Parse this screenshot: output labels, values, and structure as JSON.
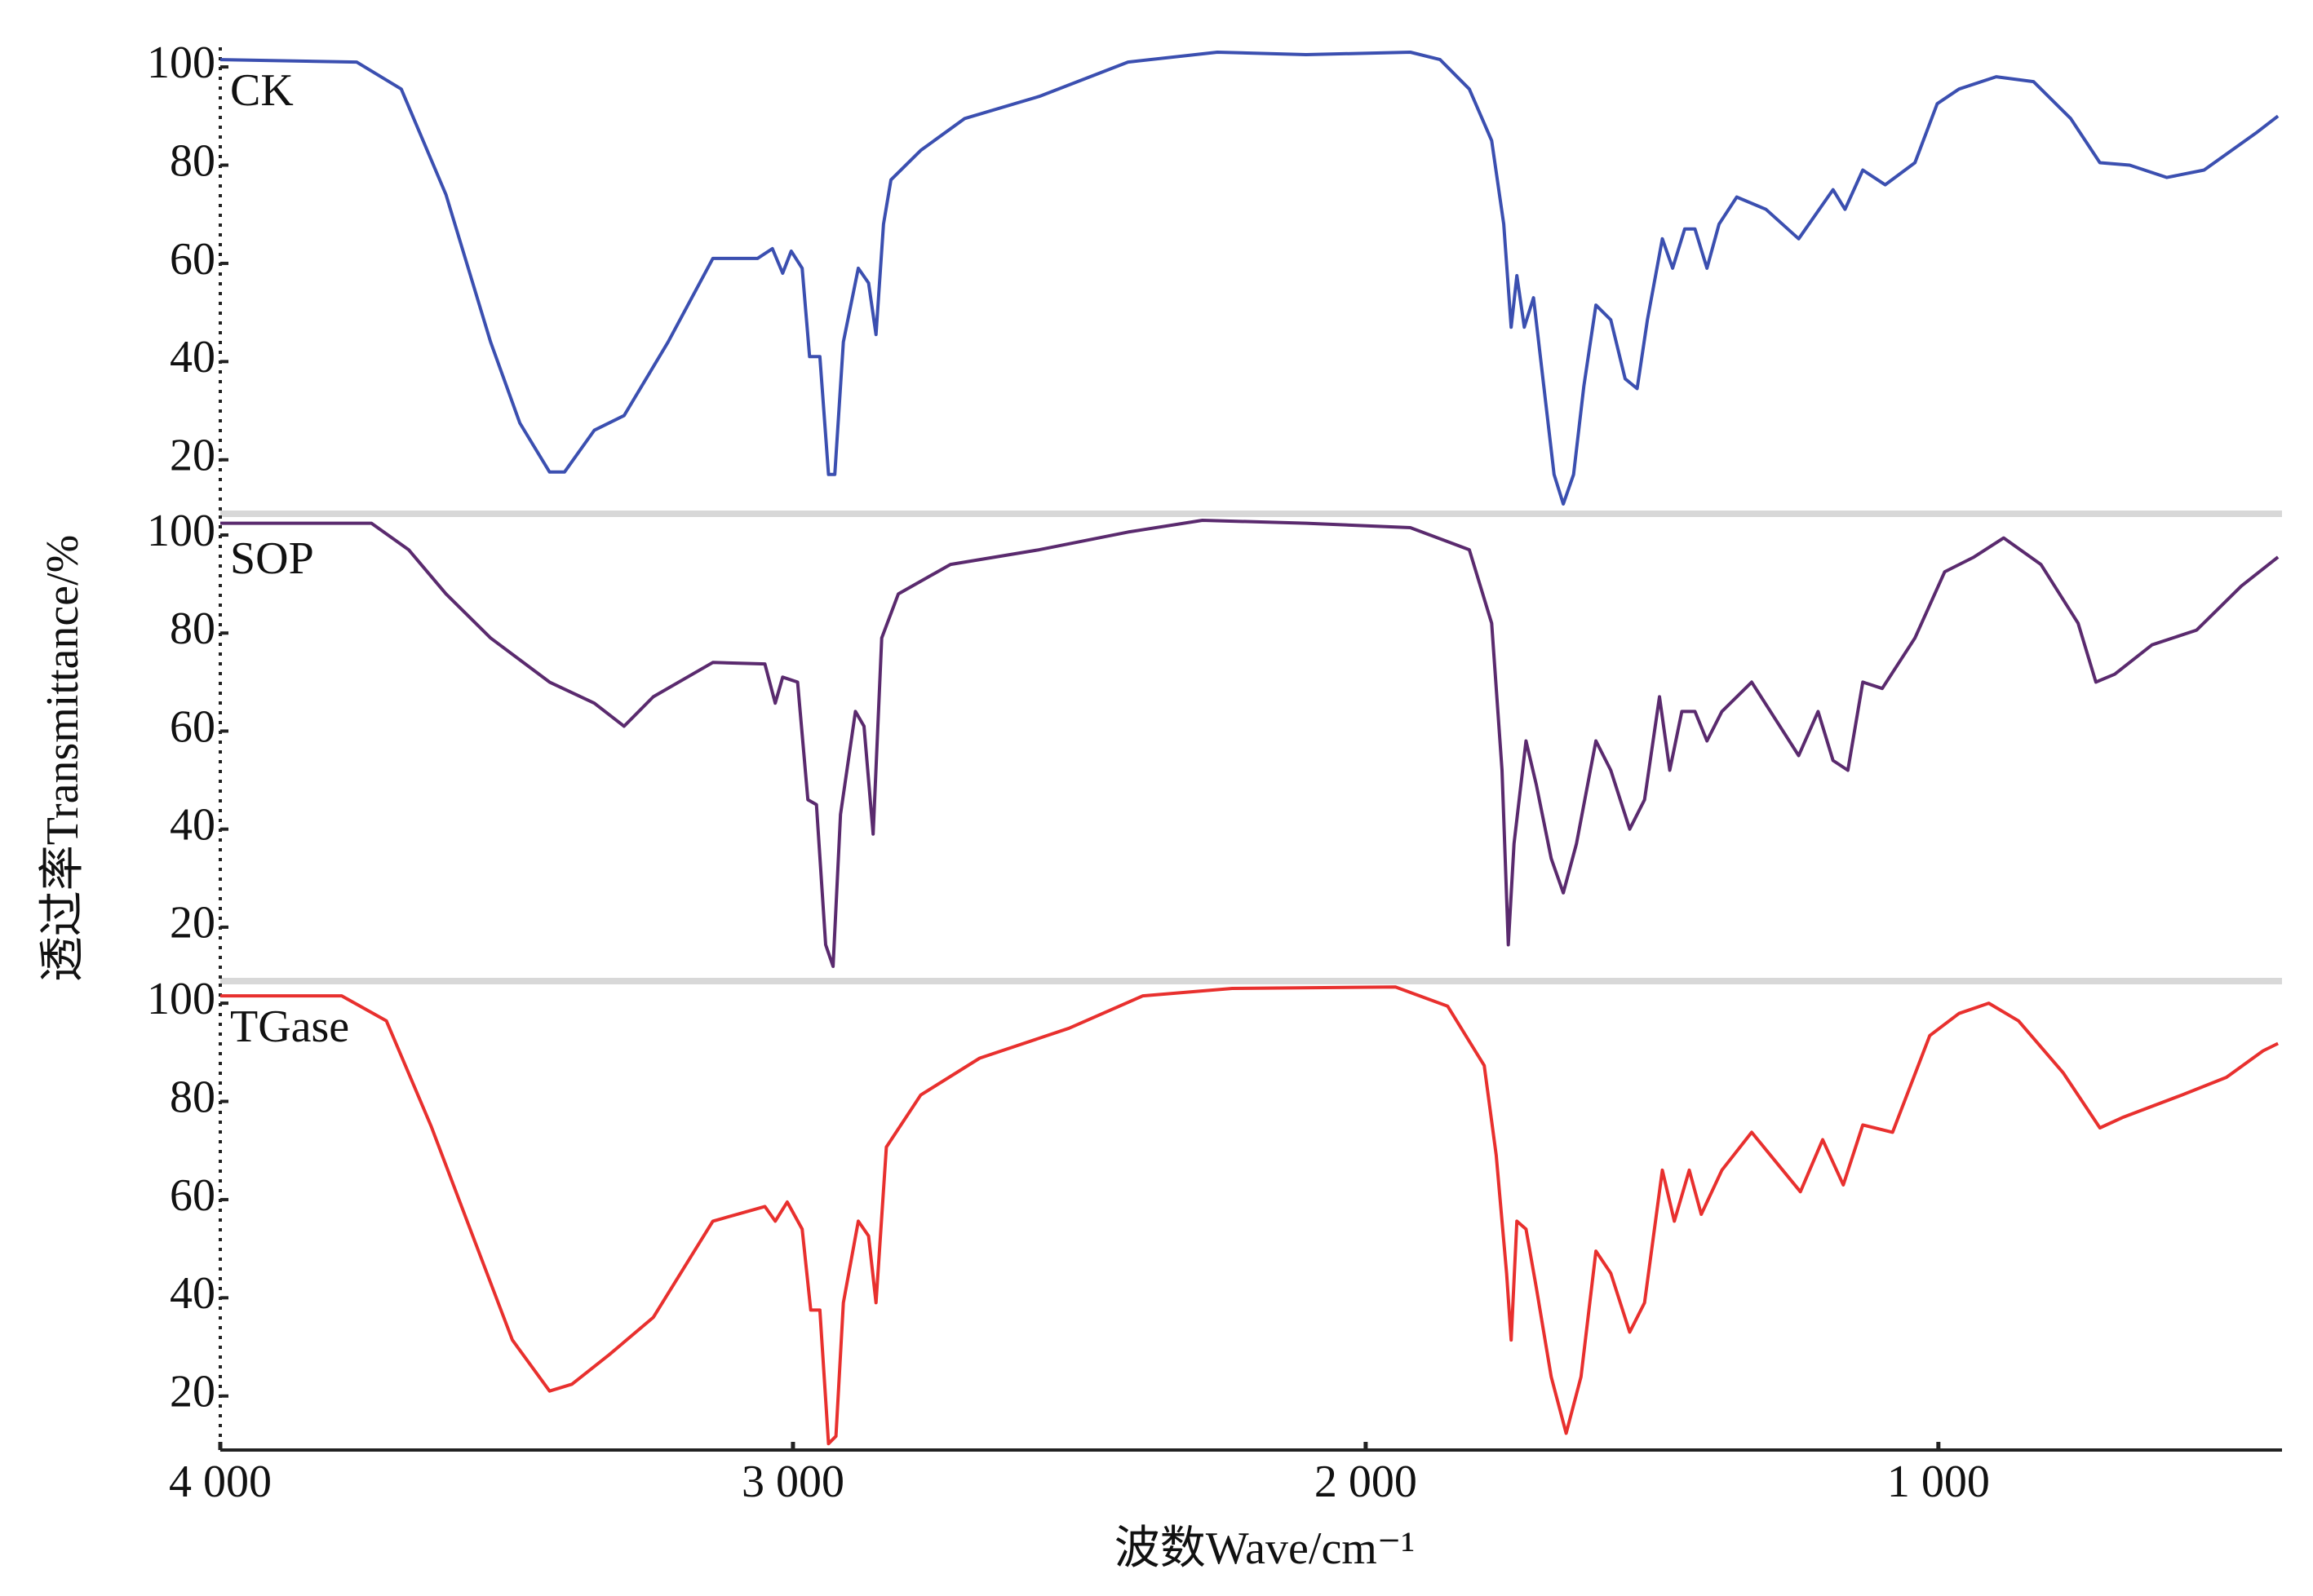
{
  "chart_data": [
    {
      "type": "line",
      "name": "CK",
      "color": "#3b4fb0",
      "ylabel": "透过率Transmittance/%",
      "xlim": [
        4000,
        400
      ],
      "ylim": [
        9,
        104
      ],
      "yticks": [
        20,
        40,
        60,
        80,
        100
      ],
      "x": [
        4000,
        3762,
        3684,
        3606,
        3528,
        3477,
        3425,
        3399,
        3347,
        3295,
        3218,
        3140,
        3062,
        3036,
        3018,
        3003,
        2984,
        2971,
        2953,
        2938,
        2927,
        2912,
        2886,
        2868,
        2855,
        2842,
        2829,
        2777,
        2700,
        2570,
        2415,
        2259,
        2104,
        1922,
        1870,
        1819,
        1780,
        1759,
        1746,
        1736,
        1723,
        1707,
        1689,
        1671,
        1655,
        1637,
        1619,
        1598,
        1572,
        1547,
        1526,
        1508,
        1482,
        1464,
        1443,
        1425,
        1404,
        1383,
        1352,
        1301,
        1244,
        1184,
        1163,
        1132,
        1093,
        1041,
        1002,
        964,
        899,
        834,
        769,
        718,
        666,
        601,
        536,
        446,
        407
      ],
      "values": [
        101.5,
        101,
        95.5,
        74,
        44,
        27.5,
        17.5,
        17.5,
        26,
        29,
        44,
        61,
        61,
        63,
        58,
        62.5,
        59,
        41,
        41,
        17,
        17,
        44,
        59,
        56,
        45.5,
        68,
        77,
        83,
        89.5,
        94,
        101,
        103,
        102.5,
        103,
        101.5,
        95.5,
        85,
        68,
        47,
        57.5,
        47,
        53,
        35,
        17,
        11,
        17,
        35,
        51.5,
        48.5,
        36.5,
        34.5,
        48.5,
        65,
        59,
        67,
        67,
        59,
        68,
        73.5,
        71,
        65,
        75,
        71,
        79,
        76,
        80.5,
        92.5,
        95.5,
        98,
        97,
        89.5,
        80.5,
        80,
        77.5,
        79,
        86.5,
        90
      ]
    },
    {
      "type": "line",
      "name": "SOP",
      "color": "#5a2a6e",
      "xlim": [
        4000,
        400
      ],
      "ylim": [
        9,
        104
      ],
      "yticks": [
        20,
        40,
        60,
        80,
        100
      ],
      "x": [
        4000,
        3736,
        3671,
        3606,
        3528,
        3425,
        3347,
        3295,
        3244,
        3140,
        3049,
        3031,
        3018,
        2992,
        2974,
        2959,
        2943,
        2930,
        2917,
        2891,
        2876,
        2860,
        2845,
        2816,
        2725,
        2570,
        2415,
        2285,
        2104,
        1922,
        1819,
        1780,
        1762,
        1751,
        1741,
        1720,
        1702,
        1676,
        1655,
        1632,
        1598,
        1572,
        1539,
        1513,
        1487,
        1469,
        1448,
        1425,
        1404,
        1378,
        1326,
        1244,
        1210,
        1184,
        1158,
        1132,
        1098,
        1041,
        989,
        938,
        886,
        821,
        756,
        725,
        692,
        627,
        549,
        471,
        407
      ],
      "values": [
        102.4,
        102.4,
        97,
        88,
        79,
        70,
        65.7,
        61,
        67,
        74,
        73.7,
        65.7,
        71,
        70,
        46,
        45,
        16.4,
        12,
        43,
        64,
        61,
        39,
        79,
        88,
        94,
        97,
        100.6,
        103,
        102.4,
        101.5,
        97,
        82,
        52,
        16.4,
        37,
        58,
        49,
        34,
        27,
        37,
        58,
        52,
        40,
        46,
        67,
        52,
        64,
        64,
        58,
        64,
        70,
        55,
        64,
        54,
        52,
        70,
        68.7,
        79,
        92.5,
        95.5,
        99.4,
        94,
        82,
        70,
        71.6,
        77.6,
        80.6,
        89.6,
        95.5
      ]
    },
    {
      "type": "line",
      "name": "TGase",
      "color": "#e8302e",
      "xlabel": "波数Wave/cm⁻¹",
      "xlim": [
        4000,
        400
      ],
      "ylim": [
        9,
        104
      ],
      "yticks": [
        20,
        40,
        60,
        80,
        100
      ],
      "xticks": [
        {
          "value": 4000,
          "label": "4 000"
        },
        {
          "value": 3000,
          "label": "3 000"
        },
        {
          "value": 2000,
          "label": "2 000"
        },
        {
          "value": 1000,
          "label": "1 000"
        }
      ],
      "x": [
        4000,
        3788,
        3710,
        3632,
        3554,
        3490,
        3425,
        3386,
        3321,
        3244,
        3140,
        3049,
        3031,
        3010,
        2984,
        2969,
        2953,
        2938,
        2925,
        2912,
        2886,
        2868,
        2855,
        2837,
        2777,
        2674,
        2518,
        2389,
        2233,
        1948,
        1857,
        1793,
        1772,
        1754,
        1746,
        1736,
        1720,
        1702,
        1676,
        1650,
        1624,
        1598,
        1572,
        1539,
        1513,
        1482,
        1461,
        1435,
        1414,
        1378,
        1326,
        1241,
        1202,
        1166,
        1132,
        1080,
        1015,
        964,
        912,
        860,
        782,
        718,
        679,
        575,
        497,
        433,
        407
      ],
      "values": [
        101.5,
        101.5,
        96.4,
        75,
        51,
        31.4,
        21,
        22.4,
        28.4,
        36,
        55.6,
        58.6,
        55.6,
        59.5,
        54,
        37.5,
        37.5,
        10.3,
        11.8,
        39,
        55.6,
        52.6,
        39,
        70.7,
        81.3,
        88.8,
        94.9,
        101.5,
        103,
        103.3,
        99.4,
        87.3,
        69,
        45,
        31.4,
        55.6,
        54,
        42,
        23.9,
        12.4,
        23.9,
        49.5,
        45,
        33,
        39,
        66,
        55.6,
        66,
        57,
        66,
        73.7,
        61.6,
        72.2,
        63,
        75.2,
        73.7,
        93.4,
        97.9,
        100,
        96.4,
        85.8,
        74.6,
        76.7,
        81.3,
        84.9,
        90.3,
        91.8
      ]
    }
  ]
}
